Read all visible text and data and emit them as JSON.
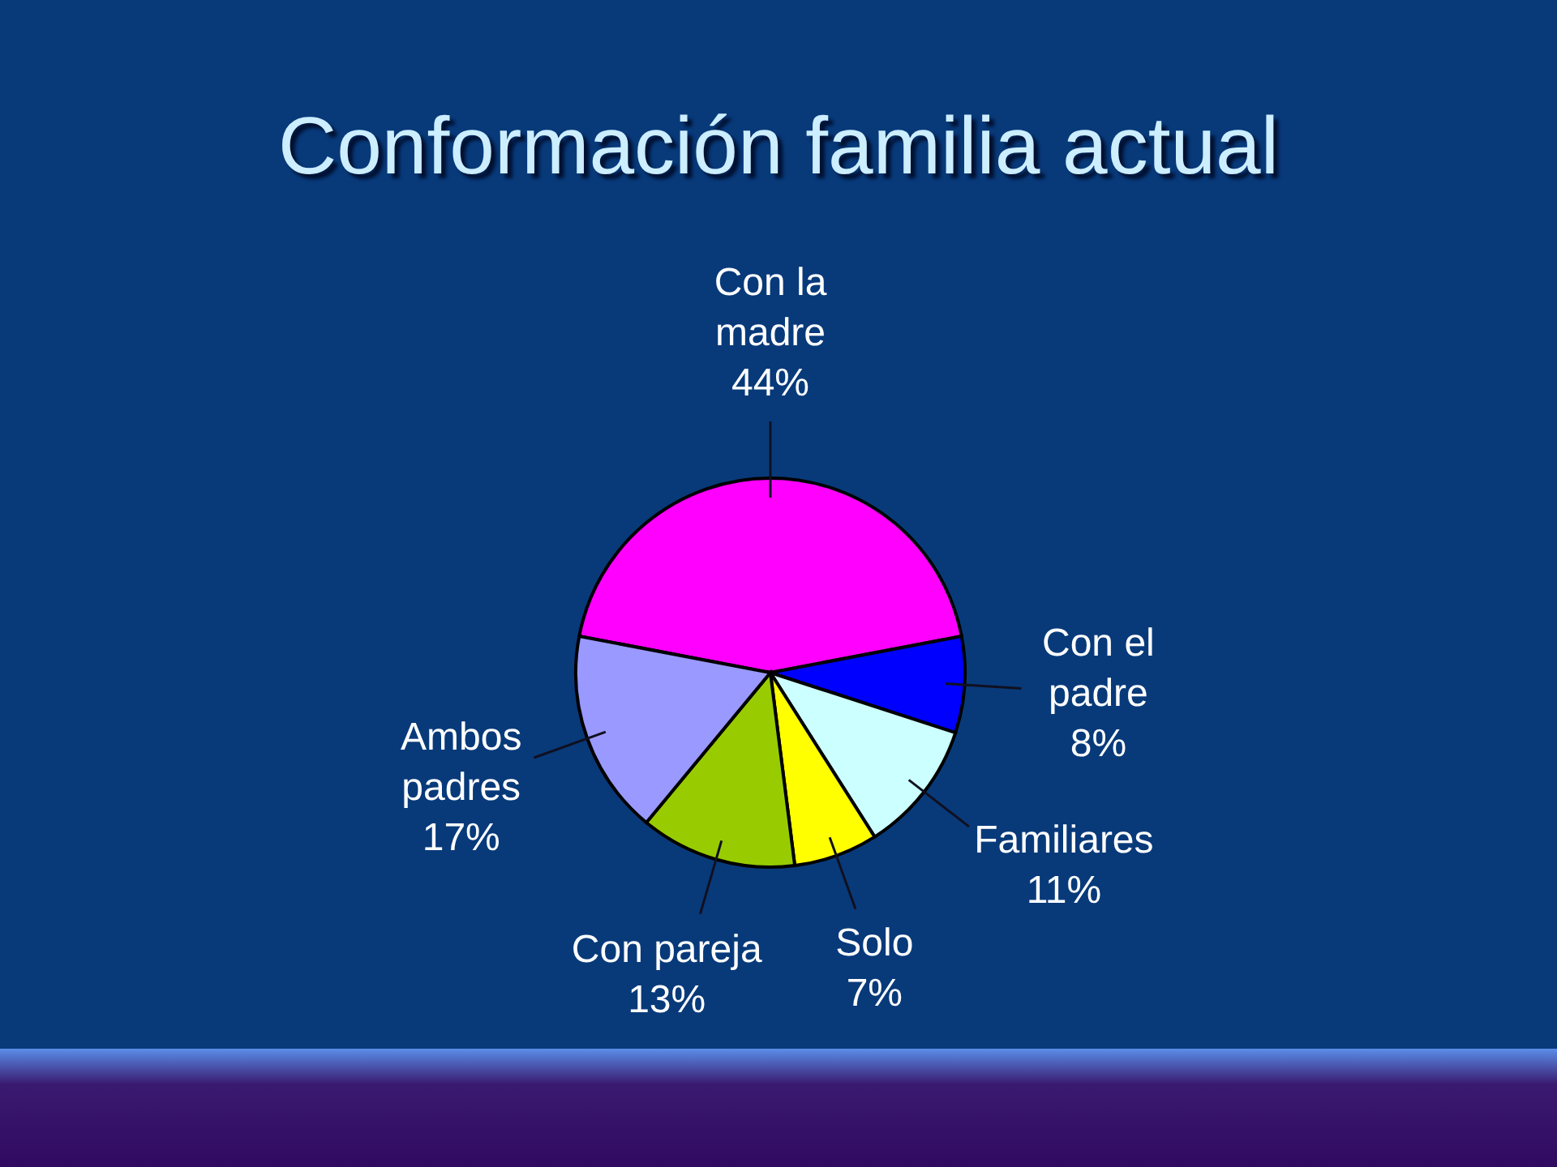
{
  "chart_data": {
    "type": "pie",
    "title": "Conformación familia actual",
    "categories": [
      "Con la madre",
      "Con el padre",
      "Familiares",
      "Solo",
      "Con pareja",
      "Ambos padres"
    ],
    "values": [
      44,
      8,
      11,
      7,
      13,
      17
    ],
    "colors": [
      "#ff00ff",
      "#0000ff",
      "#ccffff",
      "#ffff00",
      "#99cc00",
      "#9999ff"
    ],
    "value_labels": [
      "44%",
      "8%",
      "11%",
      "7%",
      "13%",
      "17%"
    ]
  }
}
